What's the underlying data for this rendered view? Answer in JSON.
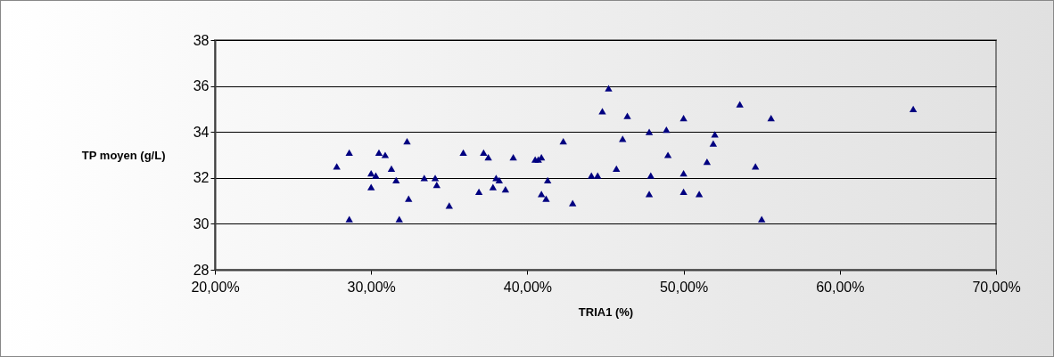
{
  "chart_data": {
    "type": "scatter",
    "xlabel": "TRIA1 (%)",
    "ylabel": "TP moyen (g/L)",
    "x": [
      27.8,
      28.6,
      28.6,
      30.0,
      30.0,
      30.3,
      30.5,
      30.9,
      31.3,
      31.6,
      31.8,
      32.3,
      32.4,
      33.4,
      34.1,
      34.2,
      35.0,
      35.9,
      36.9,
      37.2,
      37.5,
      37.8,
      38.0,
      38.2,
      38.6,
      39.1,
      40.5,
      40.7,
      40.9,
      40.9,
      41.2,
      41.3,
      42.3,
      42.9,
      44.1,
      44.5,
      44.8,
      45.2,
      45.7,
      46.1,
      46.4,
      47.8,
      47.8,
      47.9,
      48.9,
      49.0,
      50.0,
      50.0,
      50.0,
      51.0,
      51.5,
      51.9,
      52.0,
      53.6,
      54.6,
      55.0,
      55.6,
      64.7
    ],
    "series": [
      {
        "color": "#000080",
        "values": [
          32.5,
          33.1,
          30.2,
          32.2,
          31.6,
          32.1,
          33.1,
          33.0,
          32.4,
          31.9,
          30.2,
          33.6,
          31.1,
          32.0,
          32.0,
          31.7,
          30.8,
          33.1,
          31.4,
          33.1,
          32.9,
          31.6,
          32.0,
          31.9,
          31.5,
          32.9,
          32.8,
          32.8,
          31.3,
          32.9,
          31.1,
          31.9,
          33.6,
          30.9,
          32.1,
          32.1,
          34.9,
          35.9,
          32.4,
          33.7,
          34.7,
          34.0,
          31.3,
          32.1,
          34.1,
          33.0,
          34.6,
          32.2,
          31.4,
          31.3,
          32.7,
          33.5,
          33.9,
          35.2,
          32.5,
          30.2,
          34.6,
          35.0
        ]
      }
    ],
    "xlim": [
      20,
      70
    ],
    "xticks": [
      {
        "value": 20,
        "label": "20,00%"
      },
      {
        "value": 30,
        "label": "30,00%"
      },
      {
        "value": 40,
        "label": "40,00%"
      },
      {
        "value": 50,
        "label": "50,00%"
      },
      {
        "value": 60,
        "label": "60,00%"
      },
      {
        "value": 70,
        "label": "70,00%"
      }
    ],
    "ylim": [
      28,
      38
    ],
    "yticks": [
      28,
      30,
      32,
      34,
      36,
      38
    ],
    "grid": "y",
    "marker": "triangle"
  }
}
